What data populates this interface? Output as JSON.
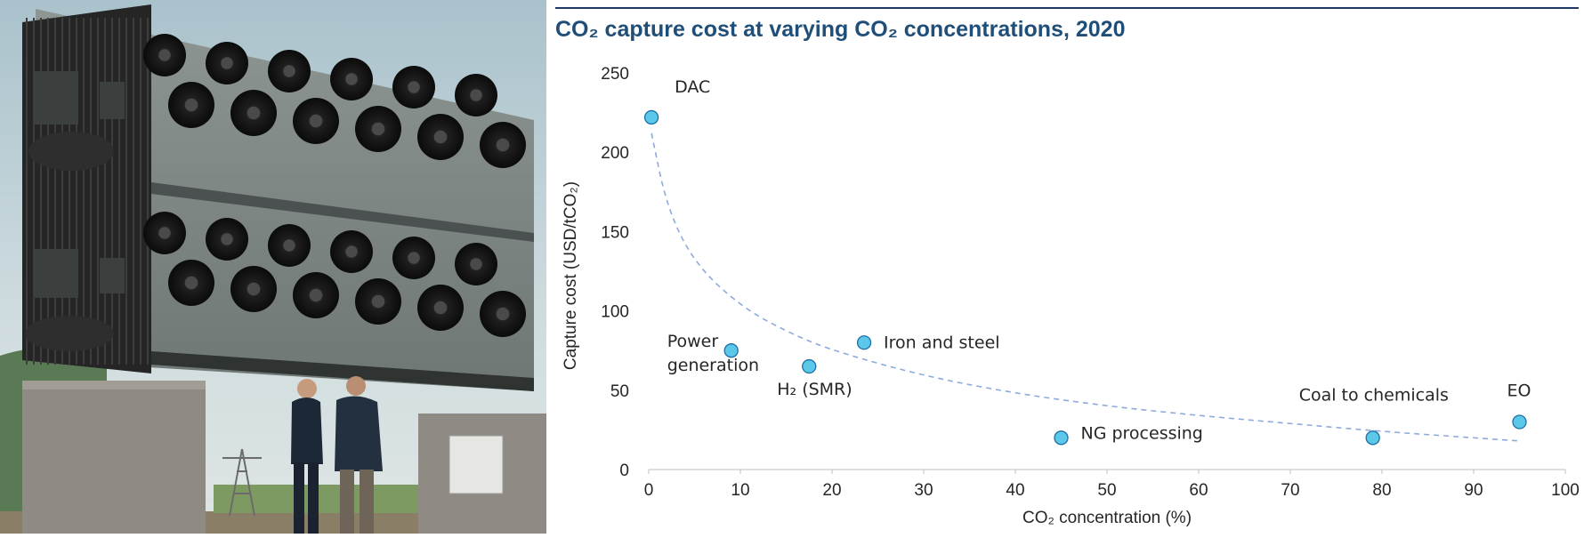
{
  "colors": {
    "title": "#1f4e79",
    "point_fill": "#5bc8ea",
    "point_stroke": "#1f6fa5",
    "trend": "#8eaadb",
    "rule": "#1f3864",
    "axis": "#bfbfbf"
  },
  "photo": {
    "subject": "direct-air-capture-collector-units"
  },
  "chart_data": {
    "type": "scatter",
    "title": "CO₂ capture cost at varying CO₂ concentrations, 2020",
    "xlabel": "CO₂ concentration (%)",
    "ylabel": "Capture cost (USD/tCO₂)",
    "xlim": [
      0,
      100
    ],
    "ylim": [
      0,
      250
    ],
    "xticks": [
      0,
      10,
      20,
      30,
      40,
      50,
      60,
      70,
      80,
      90,
      100
    ],
    "yticks": [
      0,
      50,
      100,
      150,
      200,
      250
    ],
    "grid": false,
    "points": [
      {
        "name": "DAC",
        "label_lines": [
          "DAC"
        ],
        "x": 0.3,
        "y": 222
      },
      {
        "name": "Power generation",
        "label_lines": [
          "Power",
          "generation"
        ],
        "x": 9,
        "y": 75
      },
      {
        "name": "H₂ (SMR)",
        "label_lines": [
          "H₂ (SMR)"
        ],
        "x": 17.5,
        "y": 65
      },
      {
        "name": "Iron and steel",
        "label_lines": [
          "Iron and steel"
        ],
        "x": 23.5,
        "y": 80
      },
      {
        "name": "NG processing",
        "label_lines": [
          "NG processing"
        ],
        "x": 45,
        "y": 20
      },
      {
        "name": "Coal to chemicals",
        "label_lines": [
          "Coal to chemicals"
        ],
        "x": 79,
        "y": 20
      },
      {
        "name": "EO",
        "label_lines": [
          "EO"
        ],
        "x": 95,
        "y": 30
      }
    ],
    "trendline": {
      "style": "dashed",
      "points": [
        [
          0.3,
          212
        ],
        [
          2,
          165
        ],
        [
          5,
          130
        ],
        [
          10,
          103
        ],
        [
          15,
          87
        ],
        [
          20,
          75
        ],
        [
          30,
          59
        ],
        [
          40,
          48
        ],
        [
          50,
          40
        ],
        [
          60,
          34
        ],
        [
          70,
          29
        ],
        [
          80,
          24
        ],
        [
          90,
          20
        ],
        [
          95,
          18
        ]
      ]
    }
  }
}
